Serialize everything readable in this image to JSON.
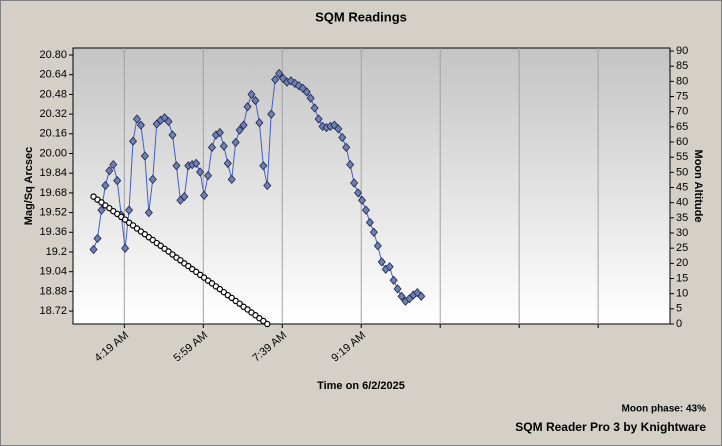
{
  "chart_data": {
    "type": "line",
    "title": "SQM Readings",
    "xlabel": "Time on 6/2/2025",
    "ylabel": "Mag/Sq Arcsec",
    "y2label": "Moon Altitude",
    "footer": [
      "Moon phase: 43%",
      "SQM Reader Pro 3 by Knightware"
    ],
    "xlim": [
      "03:14",
      "15:50"
    ],
    "xticks": [
      {
        "value": "04:19",
        "label": "4:19 AM"
      },
      {
        "value": "05:59",
        "label": "5:59 AM"
      },
      {
        "value": "07:39",
        "label": "7:39 AM"
      },
      {
        "value": "09:19",
        "label": "9:19 AM"
      },
      {
        "value": "10:59",
        "label": null
      },
      {
        "value": "12:39",
        "label": null
      },
      {
        "value": "14:19",
        "label": null
      }
    ],
    "xgrid": true,
    "ylim": [
      18.615,
      20.857
    ],
    "yticks": [
      18.72,
      18.88,
      19.04,
      19.2,
      19.36,
      19.52,
      19.68,
      19.84,
      {
        "value": 20,
        "label": "20.00"
      },
      20.16,
      20.32,
      20.48,
      20.64,
      {
        "value": 20.8,
        "label": "20.80"
      }
    ],
    "y2lim": [
      0,
      91
    ],
    "y2ticks": [
      0,
      5,
      10,
      15,
      20,
      25,
      30,
      35,
      40,
      45,
      50,
      55,
      60,
      65,
      70,
      75,
      80,
      85,
      90
    ],
    "series": [
      {
        "name": "SQM",
        "color": "#6f80b0",
        "line_color": "#4060c0",
        "marker": "diamond",
        "x": [
          "03:40",
          "03:45",
          "03:50",
          "03:55",
          "04:00",
          "04:05",
          "04:10",
          "04:15",
          "04:20",
          "04:25",
          "04:30",
          "04:35",
          "04:40",
          "04:45",
          "04:50",
          "04:55",
          "05:00",
          "05:05",
          "05:10",
          "05:15",
          "05:20",
          "05:25",
          "05:30",
          "05:35",
          "05:40",
          "05:45",
          "05:50",
          "05:55",
          "06:00",
          "06:05",
          "06:10",
          "06:15",
          "06:20",
          "06:25",
          "06:30",
          "06:35",
          "06:40",
          "06:45",
          "06:50",
          "06:55",
          "07:00",
          "07:05",
          "07:10",
          "07:15",
          "07:20",
          "07:25",
          "07:30",
          "07:35",
          "07:40",
          "07:45",
          "07:50",
          "07:55",
          "08:00",
          "08:05",
          "08:10",
          "08:15",
          "08:20",
          "08:25",
          "08:30",
          "08:35",
          "08:40",
          "08:45",
          "08:50",
          "08:55",
          "09:00",
          "09:05",
          "09:10",
          "09:15",
          "09:20",
          "09:25",
          "09:30",
          "09:35",
          "09:40",
          "09:45",
          "09:50",
          "09:55",
          "10:00",
          "10:05",
          "10:10",
          "10:15",
          "10:20",
          "10:25",
          "10:30",
          "10:35"
        ],
        "values": [
          19.22,
          19.31,
          19.54,
          19.74,
          19.86,
          19.91,
          19.78,
          19.5,
          19.23,
          19.54,
          20.1,
          20.28,
          20.23,
          19.98,
          19.52,
          19.79,
          20.24,
          20.27,
          20.29,
          20.26,
          20.15,
          19.9,
          19.62,
          19.65,
          19.9,
          19.91,
          19.92,
          19.85,
          19.66,
          19.82,
          20.05,
          20.15,
          20.17,
          20.06,
          19.92,
          19.79,
          20.09,
          20.19,
          20.23,
          20.38,
          20.48,
          20.43,
          20.25,
          19.9,
          19.74,
          20.32,
          20.6,
          20.65,
          20.61,
          20.58,
          20.59,
          20.57,
          20.55,
          20.53,
          20.5,
          20.45,
          20.37,
          20.28,
          20.22,
          20.21,
          20.22,
          20.23,
          20.2,
          20.13,
          20.05,
          19.91,
          19.76,
          19.68,
          19.62,
          19.54,
          19.44,
          19.36,
          19.25,
          19.12,
          19.06,
          19.08,
          18.97,
          18.9,
          18.84,
          18.8,
          18.82,
          18.85,
          18.87,
          18.84
        ]
      },
      {
        "name": "Moon Altitude",
        "color": "#ffffff",
        "line_color": "#000000",
        "marker": "circle",
        "axis": "y2",
        "x": [
          "03:40",
          "03:45",
          "03:50",
          "03:55",
          "04:00",
          "04:05",
          "04:10",
          "04:15",
          "04:20",
          "04:25",
          "04:30",
          "04:35",
          "04:40",
          "04:45",
          "04:50",
          "04:55",
          "05:00",
          "05:05",
          "05:10",
          "05:15",
          "05:20",
          "05:25",
          "05:30",
          "05:35",
          "05:40",
          "05:45",
          "05:50",
          "05:55",
          "06:00",
          "06:05",
          "06:10",
          "06:15",
          "06:20",
          "06:25",
          "06:30",
          "06:35",
          "06:40",
          "06:45",
          "06:50",
          "06:55",
          "07:00",
          "07:05",
          "07:10",
          "07:15",
          "07:20"
        ],
        "values": [
          42,
          41,
          40.1,
          39.1,
          38.2,
          37.2,
          36.3,
          35.3,
          34.4,
          33.4,
          32.5,
          31.5,
          30.5,
          29.6,
          28.6,
          27.7,
          26.7,
          25.8,
          24.8,
          23.9,
          22.9,
          21.9,
          21,
          20,
          19.1,
          18.1,
          17.2,
          16.2,
          15.3,
          14.3,
          13.4,
          12.4,
          11.5,
          10.5,
          9.5,
          8.6,
          7.6,
          6.7,
          5.7,
          4.8,
          3.8,
          2.9,
          1.9,
          1,
          0
        ]
      }
    ]
  }
}
